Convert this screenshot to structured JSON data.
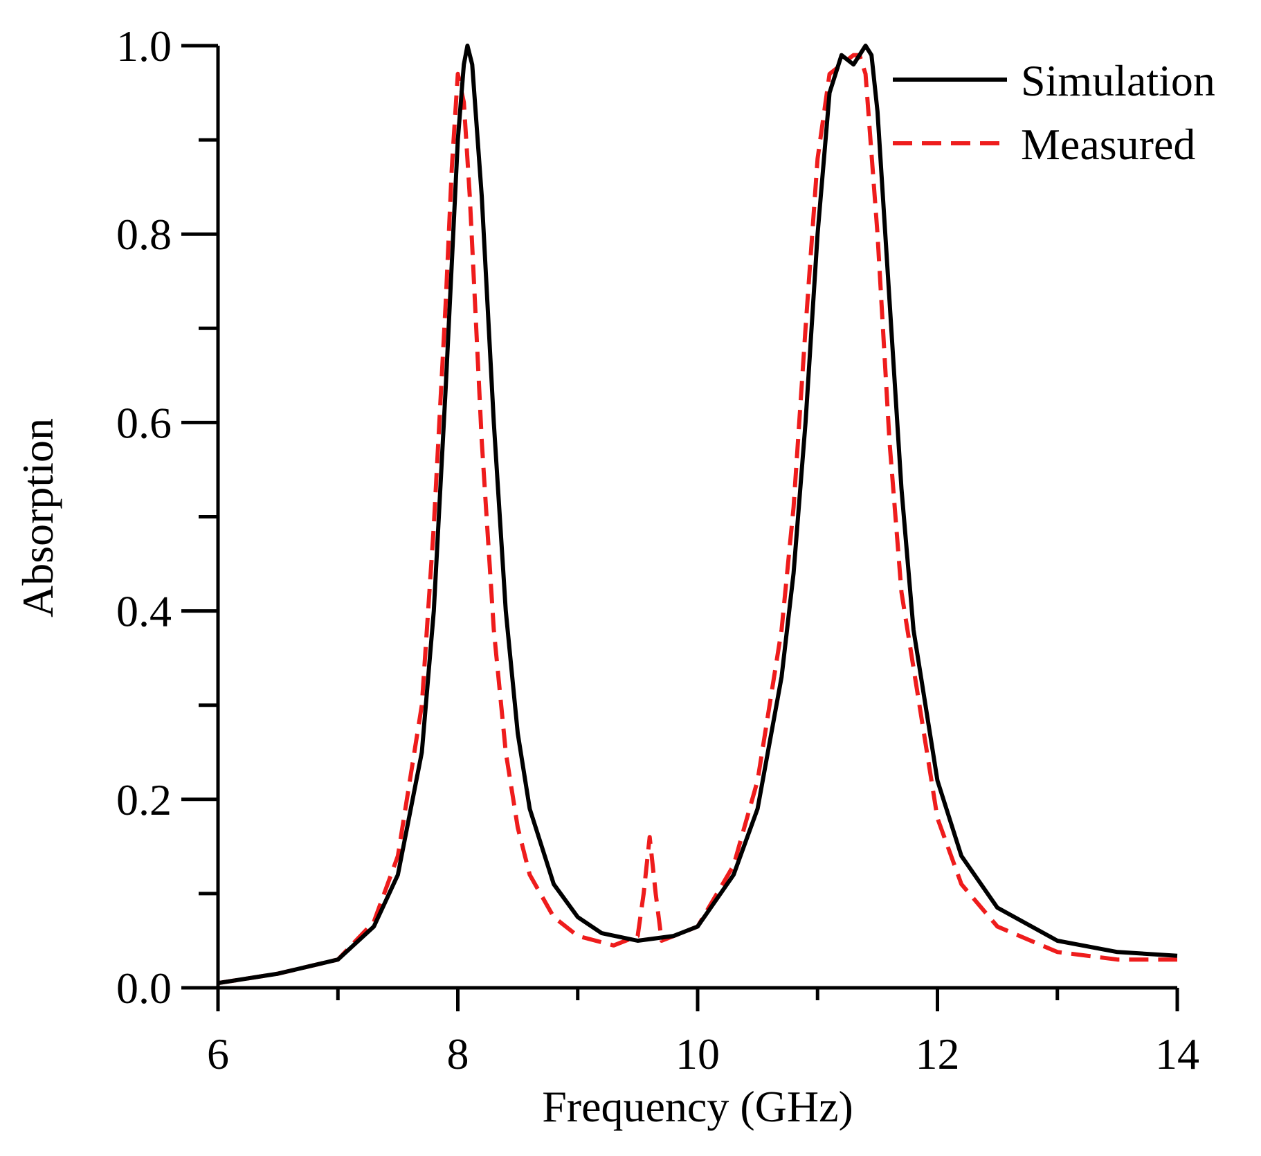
{
  "chart_data": {
    "type": "line",
    "title": "",
    "xlabel": "Frequency (GHz)",
    "ylabel": "Absorption",
    "xlim": [
      6,
      14
    ],
    "ylim": [
      0,
      1.0
    ],
    "xticks_major": [
      6,
      8,
      10,
      12,
      14
    ],
    "xticks_minor": [
      7,
      9,
      11,
      13
    ],
    "xtick_labels": [
      "6",
      "8",
      "10",
      "12",
      "14"
    ],
    "yticks_major": [
      0.0,
      0.2,
      0.4,
      0.6,
      0.8,
      1.0
    ],
    "yticks_minor": [
      0.1,
      0.3,
      0.5,
      0.7,
      0.9
    ],
    "ytick_labels": [
      "0.0",
      "0.2",
      "0.4",
      "0.6",
      "0.8",
      "1.0"
    ],
    "grid": false,
    "legend_position": "top-right",
    "series": [
      {
        "name": "Simulation",
        "color": "#000000",
        "dash": "solid",
        "x": [
          6.0,
          6.5,
          7.0,
          7.3,
          7.5,
          7.7,
          7.8,
          7.9,
          8.0,
          8.05,
          8.08,
          8.12,
          8.2,
          8.3,
          8.4,
          8.5,
          8.6,
          8.8,
          9.0,
          9.2,
          9.5,
          9.8,
          10.0,
          10.3,
          10.5,
          10.7,
          10.8,
          10.9,
          11.0,
          11.1,
          11.2,
          11.3,
          11.4,
          11.45,
          11.5,
          11.6,
          11.7,
          11.8,
          12.0,
          12.2,
          12.5,
          13.0,
          13.5,
          14.0
        ],
        "y": [
          0.005,
          0.015,
          0.03,
          0.065,
          0.12,
          0.25,
          0.4,
          0.64,
          0.9,
          0.98,
          1.0,
          0.98,
          0.84,
          0.6,
          0.4,
          0.27,
          0.19,
          0.11,
          0.075,
          0.058,
          0.05,
          0.055,
          0.065,
          0.12,
          0.19,
          0.33,
          0.44,
          0.6,
          0.8,
          0.95,
          0.99,
          0.98,
          1.0,
          0.99,
          0.93,
          0.73,
          0.53,
          0.38,
          0.22,
          0.14,
          0.085,
          0.05,
          0.038,
          0.034
        ]
      },
      {
        "name": "Measured",
        "color": "#ee1c1c",
        "dash": "dashed",
        "x": [
          6.0,
          6.5,
          7.0,
          7.3,
          7.5,
          7.7,
          7.8,
          7.9,
          7.95,
          8.0,
          8.05,
          8.1,
          8.2,
          8.3,
          8.4,
          8.5,
          8.6,
          8.8,
          9.0,
          9.3,
          9.5,
          9.55,
          9.6,
          9.65,
          9.7,
          10.0,
          10.3,
          10.5,
          10.7,
          10.8,
          10.9,
          11.0,
          11.1,
          11.2,
          11.3,
          11.35,
          11.4,
          11.5,
          11.6,
          11.7,
          12.0,
          12.2,
          12.5,
          13.0,
          13.5,
          14.0
        ],
        "y": [
          0.005,
          0.015,
          0.03,
          0.07,
          0.14,
          0.3,
          0.49,
          0.73,
          0.87,
          0.97,
          0.94,
          0.84,
          0.58,
          0.38,
          0.25,
          0.17,
          0.12,
          0.075,
          0.055,
          0.045,
          0.055,
          0.1,
          0.16,
          0.1,
          0.05,
          0.065,
          0.13,
          0.22,
          0.38,
          0.51,
          0.7,
          0.88,
          0.97,
          0.98,
          0.99,
          0.99,
          0.97,
          0.8,
          0.58,
          0.42,
          0.18,
          0.11,
          0.065,
          0.038,
          0.03,
          0.03
        ]
      }
    ]
  }
}
